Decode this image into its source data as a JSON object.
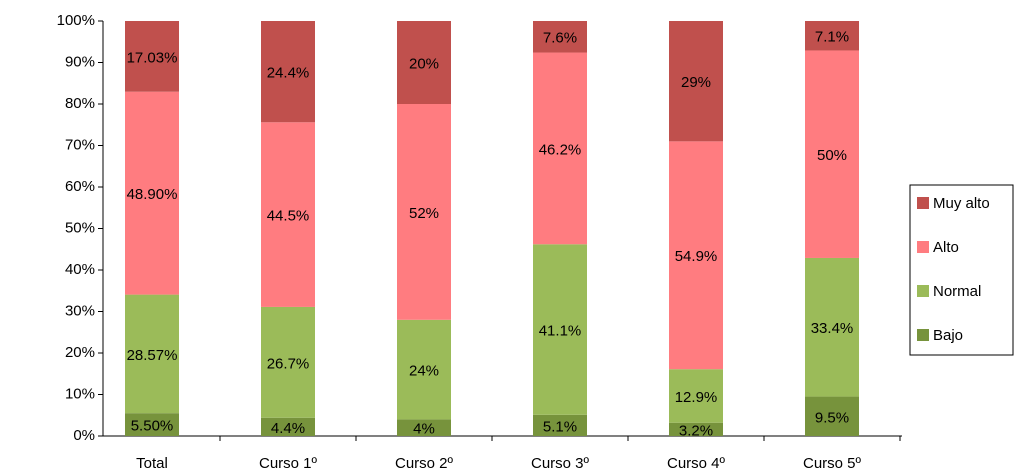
{
  "chart_data": {
    "type": "stacked_bar",
    "categories": [
      "Total",
      "Curso 1º",
      "Curso 2º",
      "Curso 3º",
      "Curso 4º",
      "Curso 5º"
    ],
    "series": [
      {
        "name": "Bajo",
        "color": "#77933c",
        "values": [
          5.5,
          4.4,
          4,
          5.1,
          3.2,
          9.5
        ],
        "value_labels": [
          "5.50%",
          "4.4%",
          "4%",
          "5.1%",
          "3.2%",
          "9.5%"
        ]
      },
      {
        "name": "Normal",
        "color": "#9bbb59",
        "values": [
          28.57,
          26.7,
          24,
          41.1,
          12.9,
          33.4
        ],
        "value_labels": [
          "28.57%",
          "26.7%",
          "24%",
          "41.1%",
          "12.9%",
          "33.4%"
        ]
      },
      {
        "name": "Alto",
        "color": "#ff7c80",
        "values": [
          48.9,
          44.5,
          52,
          46.2,
          54.9,
          50
        ],
        "value_labels": [
          "48.90%",
          "44.5%",
          "52%",
          "46.2%",
          "54.9%",
          "50%"
        ]
      },
      {
        "name": "Muy alto",
        "color": "#c0504d",
        "values": [
          17.03,
          24.4,
          20,
          7.6,
          29,
          7.1
        ],
        "value_labels": [
          "17.03%",
          "24.4%",
          "20%",
          "7.6%",
          "29%",
          "7.1%"
        ]
      }
    ],
    "ylim": [
      0,
      100
    ],
    "yticks": [
      {
        "value": 0,
        "label": "0%"
      },
      {
        "value": 10,
        "label": "10%"
      },
      {
        "value": 20,
        "label": "20%"
      },
      {
        "value": 30,
        "label": "30%"
      },
      {
        "value": 40,
        "label": "40%"
      },
      {
        "value": 50,
        "label": "50%"
      },
      {
        "value": 60,
        "label": "60%"
      },
      {
        "value": 70,
        "label": "70%"
      },
      {
        "value": 80,
        "label": "80%"
      },
      {
        "value": 90,
        "label": "90%"
      },
      {
        "value": 100,
        "label": "100%"
      }
    ],
    "legend": "right"
  }
}
